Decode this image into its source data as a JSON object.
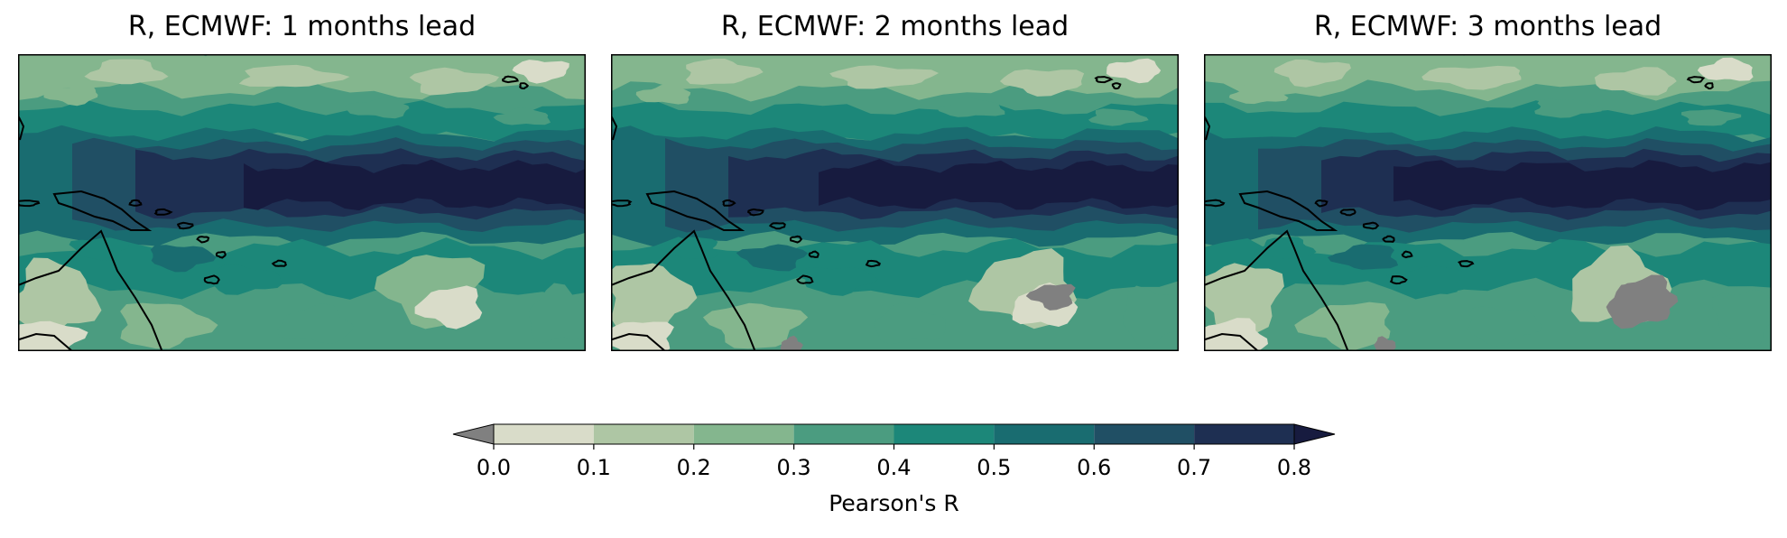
{
  "panels": [
    {
      "title": "R, ECMWF: 1 months lead",
      "lead_months": 1
    },
    {
      "title": "R, ECMWF: 2 months lead",
      "lead_months": 2
    },
    {
      "title": "R, ECMWF: 3 months lead",
      "lead_months": 3
    }
  ],
  "colorbar": {
    "label": "Pearson's R",
    "ticks": [
      "0.0",
      "0.1",
      "0.2",
      "0.3",
      "0.4",
      "0.5",
      "0.6",
      "0.7",
      "0.8"
    ],
    "bins": [
      {
        "from": 0.0,
        "to": 0.1,
        "color": "#d9dcc9"
      },
      {
        "from": 0.1,
        "to": 0.2,
        "color": "#aec6a4"
      },
      {
        "from": 0.2,
        "to": 0.3,
        "color": "#84b68e"
      },
      {
        "from": 0.3,
        "to": 0.4,
        "color": "#4b9c80"
      },
      {
        "from": 0.4,
        "to": 0.5,
        "color": "#1c8779"
      },
      {
        "from": 0.5,
        "to": 0.6,
        "color": "#196c70"
      },
      {
        "from": 0.6,
        "to": 0.7,
        "color": "#204f64"
      },
      {
        "from": 0.7,
        "to": 0.8,
        "color": "#1e2f52"
      }
    ],
    "under_color": "#808080",
    "over_color": "#171b3f",
    "extend": "both"
  },
  "map": {
    "land_outline_color": "#000000",
    "masked_color": "#808080"
  }
}
